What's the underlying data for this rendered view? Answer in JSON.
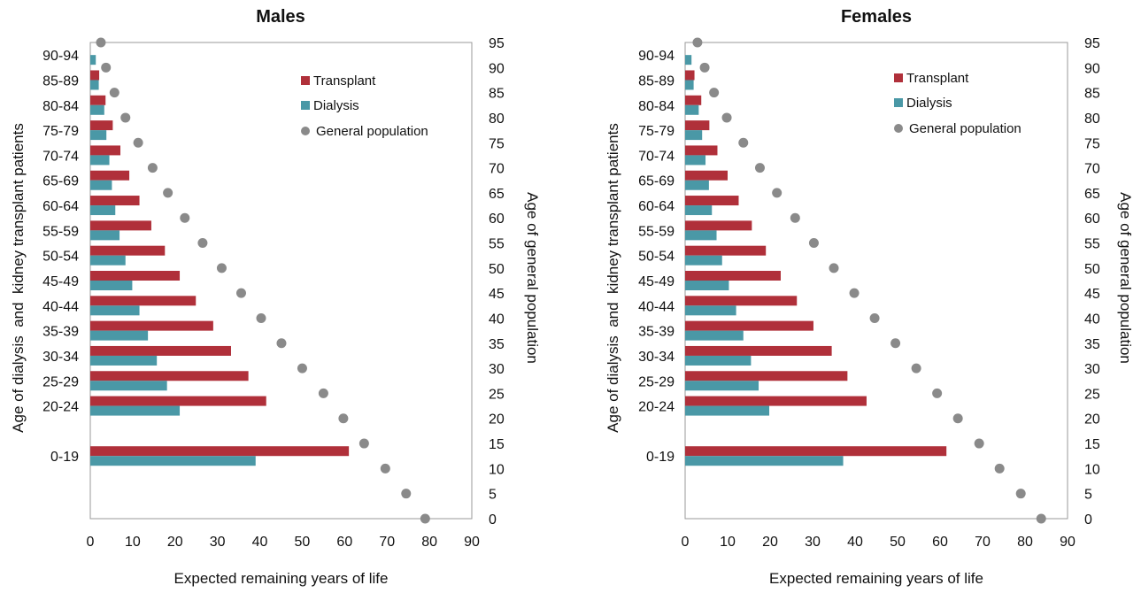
{
  "chart_data": [
    {
      "type": "bar",
      "title": "Males",
      "xlabel": "Expected remaining years of life",
      "ylabel": "Age of dialysis  and  kidney transplant patients",
      "y2label": "Age of general population",
      "xlim": [
        0,
        90
      ],
      "xticks": [
        0,
        10,
        20,
        30,
        40,
        50,
        60,
        70,
        80,
        90
      ],
      "y2lim": [
        0,
        95
      ],
      "y2ticks": [
        0,
        5,
        10,
        15,
        20,
        25,
        30,
        35,
        40,
        45,
        50,
        55,
        60,
        65,
        70,
        75,
        80,
        85,
        90,
        95
      ],
      "categories": [
        "0-19",
        "20-24",
        "25-29",
        "30-34",
        "35-39",
        "40-44",
        "45-49",
        "50-54",
        "55-59",
        "60-64",
        "65-69",
        "70-74",
        "75-79",
        "80-84",
        "85-89",
        "90-94"
      ],
      "category_y2_position": [
        12.5,
        22.5,
        27.5,
        32.5,
        37.5,
        42.5,
        47.5,
        52.5,
        57.5,
        62.5,
        67.5,
        72.5,
        77.5,
        82.5,
        87.5,
        92.5
      ],
      "series": [
        {
          "name": "Transplant",
          "color": "#b0303a",
          "values": [
            61,
            41.5,
            37.3,
            33.2,
            29.0,
            24.9,
            21.1,
            17.6,
            14.4,
            11.6,
            9.2,
            7.1,
            5.3,
            3.6,
            2.1,
            0
          ]
        },
        {
          "name": "Dialysis",
          "color": "#4a98a6",
          "values": [
            39,
            21.1,
            18.1,
            15.7,
            13.6,
            11.6,
            9.9,
            8.3,
            6.9,
            5.9,
            5.1,
            4.5,
            3.8,
            3.3,
            2.0,
            1.3
          ]
        }
      ],
      "points": {
        "name": "General population",
        "color": "#8a8a8a",
        "x": [
          79,
          74.5,
          69.6,
          64.6,
          59.7,
          55.0,
          50.0,
          45.1,
          40.3,
          35.6,
          31.0,
          26.5,
          22.3,
          18.3,
          14.7,
          11.3,
          8.3,
          5.7,
          3.7,
          2.5
        ],
        "y2": [
          0,
          5,
          10,
          15,
          20,
          25,
          30,
          35,
          40,
          45,
          50,
          55,
          60,
          65,
          70,
          75,
          80,
          85,
          90,
          95
        ]
      },
      "legend_position": "top-right"
    },
    {
      "type": "bar",
      "title": "Females",
      "xlabel": "Expected remaining years of life",
      "ylabel": "Age of dialysis  and  kidney transplant patients",
      "y2label": "Age of general population",
      "xlim": [
        0,
        90
      ],
      "xticks": [
        0,
        10,
        20,
        30,
        40,
        50,
        60,
        70,
        80,
        90
      ],
      "y2lim": [
        0,
        95
      ],
      "y2ticks": [
        0,
        5,
        10,
        15,
        20,
        25,
        30,
        35,
        40,
        45,
        50,
        55,
        60,
        65,
        70,
        75,
        80,
        85,
        90,
        95
      ],
      "categories": [
        "0-19",
        "20-24",
        "25-29",
        "30-34",
        "35-39",
        "40-44",
        "45-49",
        "50-54",
        "55-59",
        "60-64",
        "65-69",
        "70-74",
        "75-79",
        "80-84",
        "85-89",
        "90-94"
      ],
      "category_y2_position": [
        12.5,
        22.5,
        27.5,
        32.5,
        37.5,
        42.5,
        47.5,
        52.5,
        57.5,
        62.5,
        67.5,
        72.5,
        77.5,
        82.5,
        87.5,
        92.5
      ],
      "series": [
        {
          "name": "Transplant",
          "color": "#b0303a",
          "values": [
            61.5,
            42.7,
            38.2,
            34.5,
            30.2,
            26.3,
            22.5,
            19.0,
            15.7,
            12.6,
            10.0,
            7.6,
            5.7,
            3.8,
            2.2,
            0
          ]
        },
        {
          "name": "Dialysis",
          "color": "#4a98a6",
          "values": [
            37.2,
            19.8,
            17.3,
            15.5,
            13.7,
            12.0,
            10.3,
            8.7,
            7.4,
            6.3,
            5.6,
            4.8,
            4.0,
            3.2,
            2.0,
            1.5
          ]
        }
      ],
      "points": {
        "name": "General population",
        "color": "#8a8a8a",
        "x": [
          83.8,
          79.0,
          74.0,
          69.2,
          64.2,
          59.3,
          54.4,
          49.5,
          44.6,
          39.8,
          35.0,
          30.3,
          25.9,
          21.6,
          17.6,
          13.7,
          9.8,
          6.8,
          4.6,
          2.9
        ],
        "y2": [
          0,
          5,
          10,
          15,
          20,
          25,
          30,
          35,
          40,
          45,
          50,
          55,
          60,
          65,
          70,
          75,
          80,
          85,
          90,
          95
        ]
      },
      "legend_position": "top-right"
    }
  ]
}
